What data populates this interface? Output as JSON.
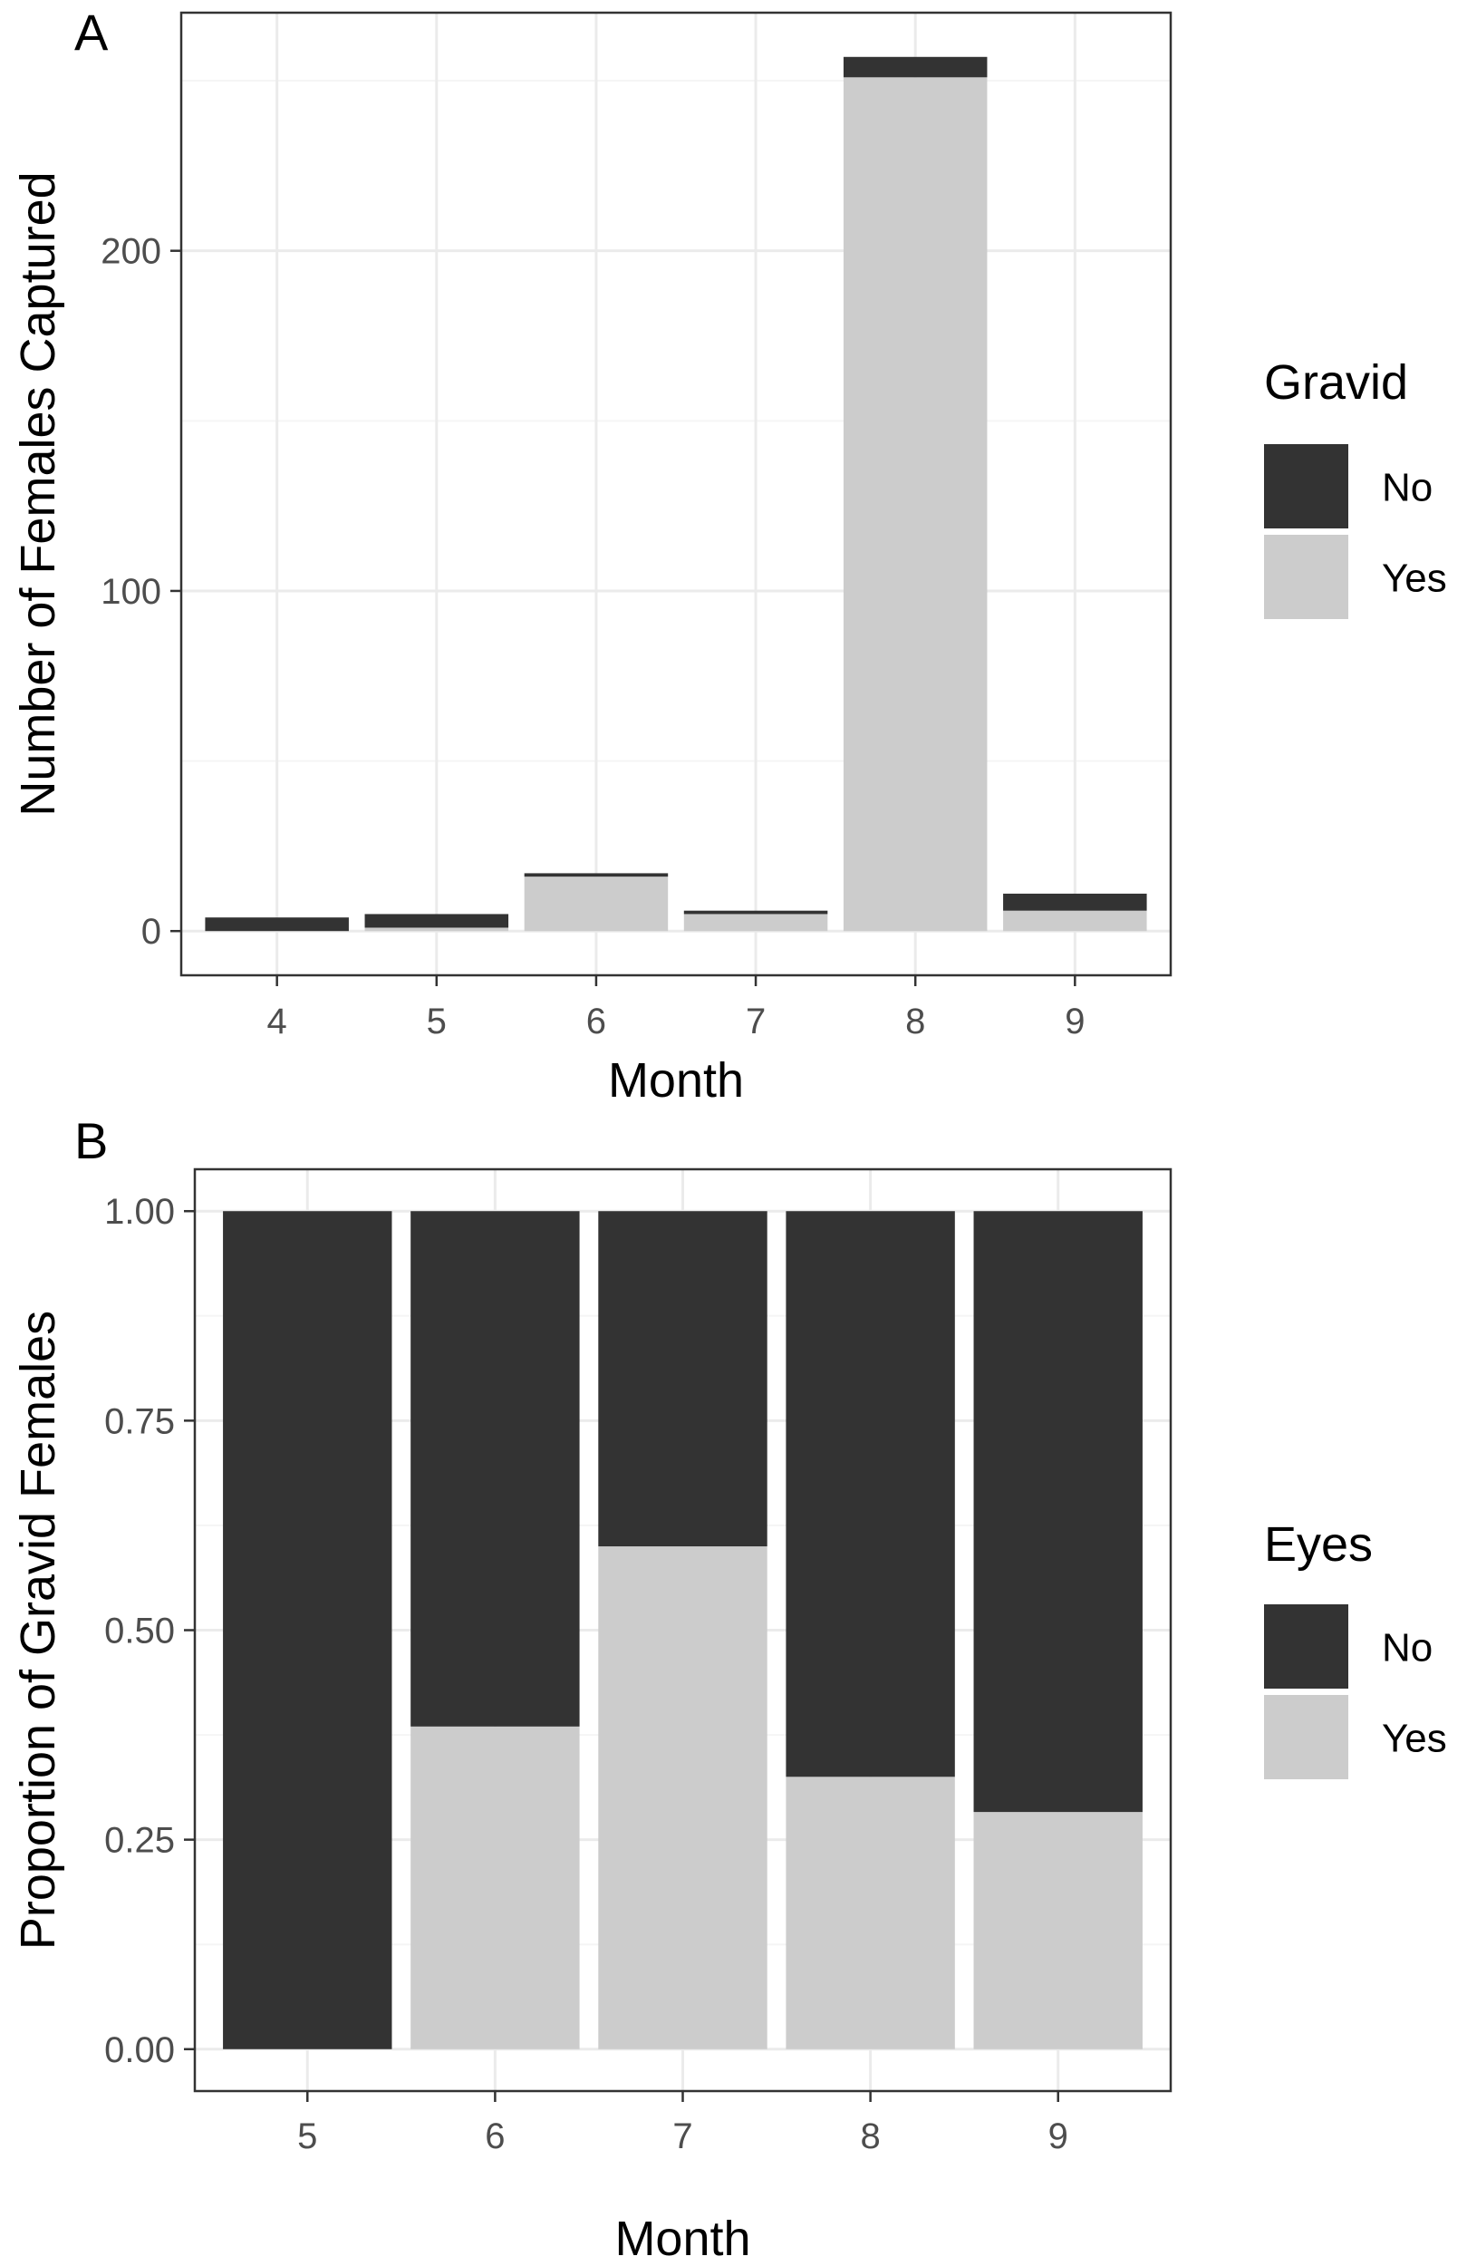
{
  "colors": {
    "no": "#333333",
    "yes": "#cccccc",
    "grid_major": "#ebebeb",
    "grid_minor": "#f5f5f5",
    "panel_border": "#333333",
    "tick_text": "#4d4d4d"
  },
  "chart_data": [
    {
      "panel": "A",
      "type": "bar",
      "stacked": true,
      "xlabel": "Month",
      "ylabel": "Number of Females Captured",
      "ylim": [
        -13,
        270
      ],
      "yticks": [
        0,
        100,
        200
      ],
      "ytick_labels": [
        "0",
        "100",
        "200"
      ],
      "categories": [
        "4",
        "5",
        "6",
        "7",
        "8",
        "9"
      ],
      "grid": true,
      "legend": {
        "title": "Gravid",
        "position": "right"
      },
      "series": [
        {
          "name": "Yes",
          "color_key": "yes",
          "values": [
            0,
            1,
            16,
            5,
            251,
            6
          ]
        },
        {
          "name": "No",
          "color_key": "no",
          "values": [
            4,
            4,
            1,
            1,
            6,
            5
          ]
        }
      ]
    },
    {
      "panel": "B",
      "type": "bar",
      "stacked": true,
      "xlabel": "Month",
      "ylabel": "Proportion of Gravid Females",
      "ylim": [
        -0.05,
        1.05
      ],
      "yticks": [
        0,
        0.25,
        0.5,
        0.75,
        1
      ],
      "ytick_labels": [
        "0.00",
        "0.25",
        "0.50",
        "0.75",
        "1.00"
      ],
      "categories": [
        "5",
        "6",
        "7",
        "8",
        "9"
      ],
      "grid": true,
      "legend": {
        "title": "Eyes",
        "position": "right"
      },
      "series": [
        {
          "name": "Yes",
          "color_key": "yes",
          "values": [
            0,
            0.385,
            0.6,
            0.325,
            0.283
          ]
        },
        {
          "name": "No",
          "color_key": "no",
          "values": [
            1,
            0.615,
            0.4,
            0.675,
            0.717
          ]
        }
      ]
    }
  ],
  "legend_order": [
    "No",
    "Yes"
  ]
}
